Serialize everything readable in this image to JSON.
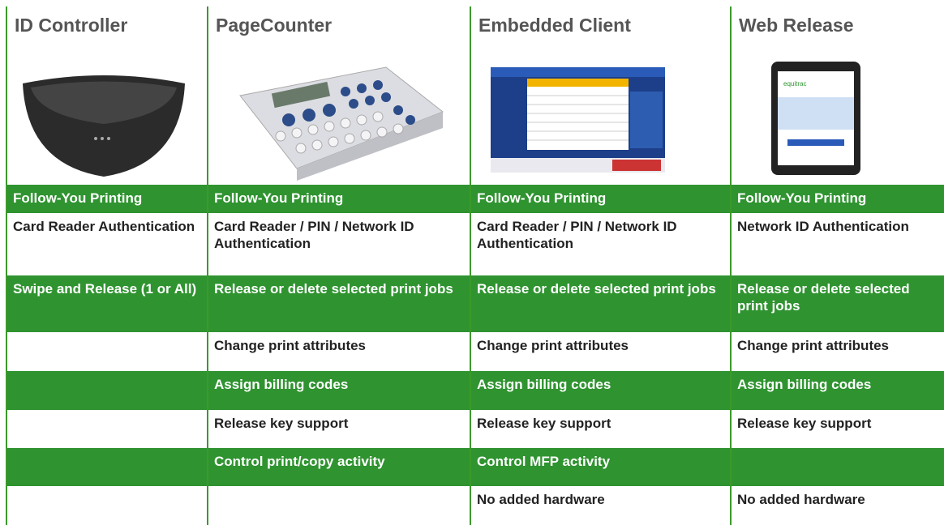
{
  "columns": [
    "ID Controller",
    "PageCounter",
    "Embedded Client",
    "Web Release"
  ],
  "rows": [
    [
      "Follow-You Printing",
      "Follow-You Printing",
      "Follow-You Printing",
      "Follow-You Printing"
    ],
    [
      "Card Reader Authentication",
      "Card Reader / PIN / Network ID Authentication",
      "Card Reader / PIN / Network ID Authentication",
      "Network ID Authentication"
    ],
    [
      "Swipe and Release (1 or All)",
      "Release or delete selected print jobs",
      "Release or delete selected print jobs",
      "Release or delete selected print jobs"
    ],
    [
      null,
      "Change print attributes",
      "Change print attributes",
      "Change print attributes"
    ],
    [
      null,
      "Assign billing codes",
      "Assign billing codes",
      "Assign billing codes"
    ],
    [
      null,
      "Release key support",
      "Release key support",
      "Release key support"
    ],
    [
      null,
      "Control print/copy activity",
      "Control MFP activity",
      null
    ],
    [
      null,
      null,
      "No added hardware",
      "No added hardware"
    ]
  ]
}
